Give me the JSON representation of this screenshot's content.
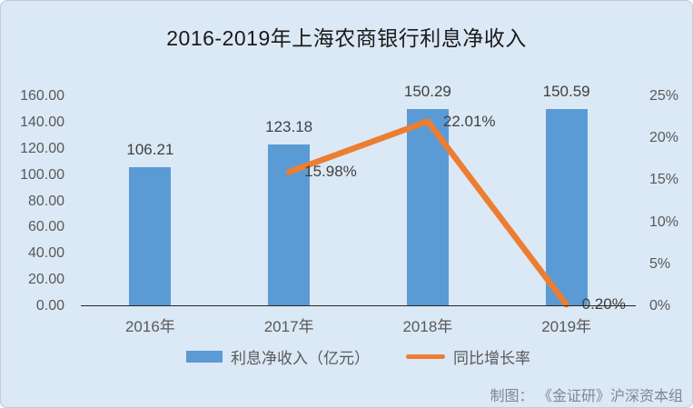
{
  "card": {
    "title": "2016-2019年上海农商银行利息净收入",
    "footer": "制图： 《金证研》沪深资本组"
  },
  "legend": {
    "bar_label": "利息净收入（亿元）",
    "line_label": "同比增长率"
  },
  "colors": {
    "background": "#dbe8f5",
    "bar": "#5b9bd5",
    "line": "#ed7d31",
    "axis_line": "#262626",
    "tick_text": "#595959",
    "data_label_text": "#404040",
    "footer_text": "#7f8894"
  },
  "chart_data": {
    "type": "combo-bar-line",
    "title": "2016-2019年上海农商银行利息净收入",
    "categories": [
      "2016年",
      "2017年",
      "2018年",
      "2019年"
    ],
    "series": [
      {
        "name": "利息净收入（亿元）",
        "type": "bar",
        "axis": "left",
        "values": [
          106.21,
          123.18,
          150.29,
          150.59
        ],
        "labels": [
          "106.21",
          "123.18",
          "150.29",
          "150.59"
        ]
      },
      {
        "name": "同比增长率",
        "type": "line",
        "axis": "right",
        "values": [
          null,
          15.98,
          22.01,
          0.2
        ],
        "labels": [
          null,
          "15.98%",
          "22.01%",
          "0.20%"
        ]
      }
    ],
    "left_axis": {
      "min": 0,
      "max": 160,
      "ticks": [
        "160.00",
        "140.00",
        "120.00",
        "100.00",
        "80.00",
        "60.00",
        "40.00",
        "20.00",
        "0.00"
      ]
    },
    "right_axis": {
      "min": 0,
      "max": 25,
      "ticks": [
        "25%",
        "20%",
        "15%",
        "10%",
        "5%",
        "0%"
      ]
    },
    "grid": false,
    "legend_position": "bottom"
  }
}
